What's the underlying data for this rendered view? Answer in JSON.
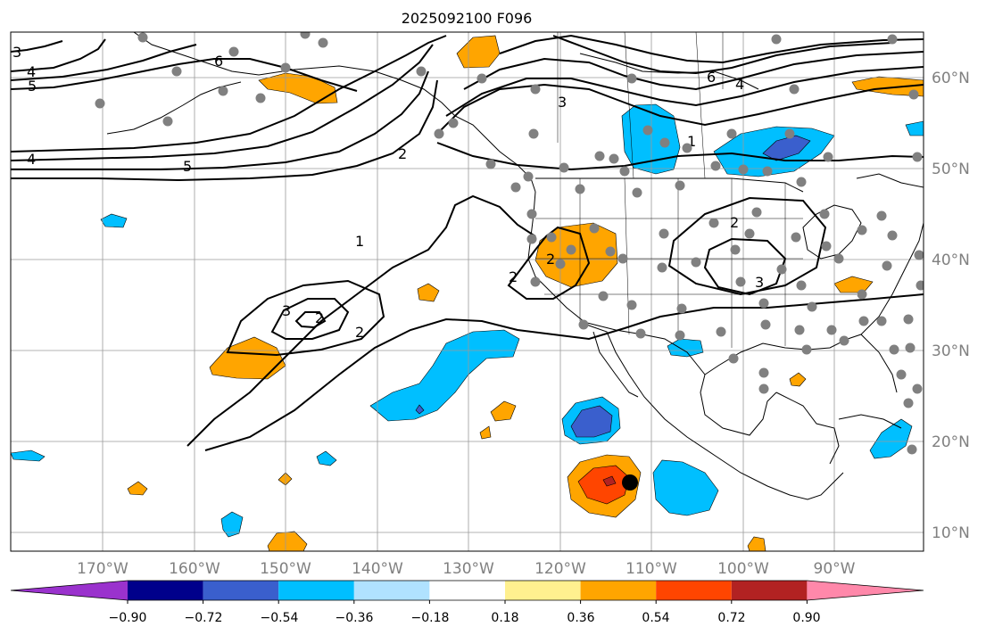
{
  "title": "2025092100 F096",
  "lon_labels": [
    "170°W",
    "160°W",
    "150°W",
    "140°W",
    "130°W",
    "120°W",
    "110°W",
    "100°W",
    "90°W"
  ],
  "lat_labels": [
    "60°N",
    "50°N",
    "40°N",
    "30°N",
    "20°N",
    "10°N"
  ],
  "colorbar": {
    "ticks": [
      "−0.90",
      "−0.72",
      "−0.54",
      "−0.36",
      "−0.18",
      "0.18",
      "0.36",
      "0.54",
      "0.72",
      "0.90"
    ],
    "colors": [
      "#9a32cd",
      "#00008b",
      "#3a5fcd",
      "#00bfff",
      "#b0e2ff",
      "#ffffff",
      "#fff08f",
      "#ffa500",
      "#ff4500",
      "#b22222",
      "#ff88aa"
    ]
  },
  "contour_labels": [
    "3",
    "4",
    "5",
    "6",
    "6",
    "4",
    "3",
    "1",
    "2",
    "5",
    "4",
    "1",
    "2",
    "2",
    "3",
    "2",
    "3",
    "2",
    "2"
  ],
  "colors": {
    "warm": "#ffa500",
    "hot": "#ff4500",
    "deep": "#b22222",
    "cool": "#00bfff",
    "cold": "#3a5fcd",
    "pale_warm": "#fff08f",
    "pale_cool": "#b0e2ff",
    "station": "#808080",
    "grid": "#9a9a9a",
    "axis_text": "#808080"
  }
}
